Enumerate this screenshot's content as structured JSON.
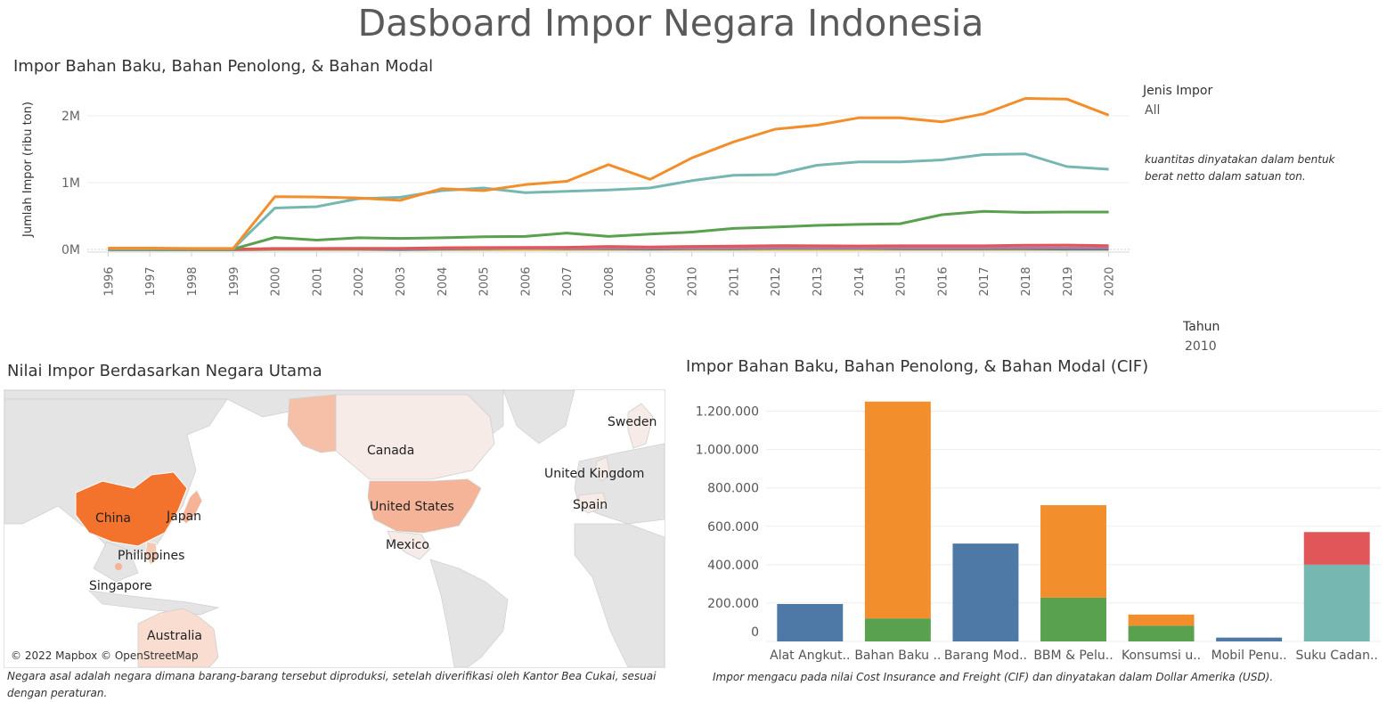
{
  "dashboard_title": "Dasboard Impor Negara Indonesia",
  "line_section": {
    "title": "Impor Bahan Baku, Bahan Penolong, & Bahan Modal",
    "legend_title": "Jenis Impor",
    "legend_value": "All",
    "note": "kuantitas dinyatakan dalam bentuk berat netto dalam satuan ton."
  },
  "year_filter": {
    "title": "Tahun",
    "value": "2010"
  },
  "map_section": {
    "title": "Nilai Impor Berdasarkan Negara Utama",
    "attribution": "© 2022 Mapbox © OpenStreetMap",
    "labels": [
      "China",
      "Japan",
      "Philippines",
      "Singapore",
      "Australia",
      "Canada",
      "United States",
      "Mexico",
      "Sweden",
      "United Kingdom",
      "Spain"
    ],
    "note": "Negara asal adalah negara dimana barang-barang tersebut diproduksi, setelah diverifikasi oleh Kantor Bea Cukai, sesuai dengan peraturan."
  },
  "bar_section": {
    "title": "Impor Bahan Baku, Bahan Penolong, & Bahan Modal (CIF)",
    "note": "Impor mengacu pada nilai Cost Insurance and Freight (CIF) dan dinyatakan dalam Dollar Amerika (USD)."
  },
  "colors": {
    "orange": "#f28e2b",
    "teal": "#76b7b2",
    "green": "#59a14f",
    "red": "#e15759",
    "blue": "#4e79a7",
    "yellow": "#edc948",
    "purple": "#b07aa1"
  },
  "chart_data": [
    {
      "type": "line",
      "ylabel": "Jumlah Impor (ribu ton)",
      "xlabel": "",
      "ylim": [
        0,
        2400000
      ],
      "yticks": [
        0,
        1000000,
        2000000
      ],
      "ytick_labels": [
        "0M",
        "1M",
        "2M"
      ],
      "grid": true,
      "x": [
        "1996",
        "1997",
        "1998",
        "1999",
        "2000",
        "2001",
        "2002",
        "2003",
        "2004",
        "2005",
        "2006",
        "2007",
        "2008",
        "2009",
        "2010",
        "2011",
        "2012",
        "2013",
        "2014",
        "2015",
        "2016",
        "2017",
        "2018",
        "2019",
        "2020"
      ],
      "series": [
        {
          "color": "orange",
          "values": [
            20000,
            20000,
            15000,
            15000,
            790000,
            785000,
            770000,
            735000,
            910000,
            880000,
            970000,
            1020000,
            1270000,
            1050000,
            1370000,
            1610000,
            1800000,
            1860000,
            1970000,
            1970000,
            1910000,
            2030000,
            2260000,
            2250000,
            2010000
          ]
        },
        {
          "color": "teal",
          "values": [
            10000,
            10000,
            10000,
            10000,
            620000,
            640000,
            760000,
            780000,
            880000,
            920000,
            850000,
            870000,
            890000,
            920000,
            1030000,
            1110000,
            1120000,
            1260000,
            1310000,
            1310000,
            1340000,
            1420000,
            1430000,
            1240000,
            1200000
          ]
        },
        {
          "color": "green",
          "values": [
            5000,
            5000,
            5000,
            5000,
            180000,
            140000,
            175000,
            165000,
            175000,
            190000,
            195000,
            245000,
            195000,
            230000,
            260000,
            315000,
            335000,
            360000,
            375000,
            385000,
            520000,
            570000,
            555000,
            560000,
            560000
          ]
        },
        {
          "color": "red",
          "values": [
            3000,
            3000,
            3000,
            3000,
            15000,
            15000,
            18000,
            18000,
            25000,
            28000,
            30000,
            32000,
            45000,
            38000,
            45000,
            50000,
            58000,
            55000,
            52000,
            55000,
            55000,
            55000,
            62000,
            65000,
            58000
          ]
        },
        {
          "color": "purple",
          "values": [
            2000,
            2000,
            2000,
            2000,
            8000,
            8000,
            10000,
            10000,
            12000,
            14000,
            15000,
            15000,
            18000,
            16000,
            18000,
            20000,
            22000,
            22000,
            22000,
            22000,
            22000,
            24000,
            26000,
            25000,
            25000
          ]
        },
        {
          "color": "blue",
          "values": [
            -2000,
            -2000,
            -2000,
            -2000,
            5000,
            5000,
            5000,
            -1000,
            5000,
            10000,
            15000,
            10000,
            10000,
            5000,
            10000,
            10000,
            15000,
            15000,
            15000,
            10000,
            10000,
            10000,
            10000,
            5000,
            5000
          ]
        },
        {
          "color": "yellow",
          "values": [
            -8000,
            -8000,
            -8000,
            -8000,
            -5000,
            -5000,
            -5000,
            -5000,
            -5000,
            -5000,
            -4000,
            -4000,
            -3000,
            -3000,
            -3000,
            -3000,
            -2000,
            -2000,
            -2000,
            -2000,
            -2000,
            -2000,
            -2000,
            -2000,
            -2000
          ]
        }
      ]
    },
    {
      "type": "bar",
      "stacked": true,
      "xlabel": "",
      "ylabel": "",
      "ylim": [
        0,
        1300000
      ],
      "yticks": [
        0,
        200000,
        400000,
        600000,
        800000,
        1000000,
        1200000
      ],
      "ytick_labels": [
        "0",
        "200.000",
        "400.000",
        "600.000",
        "800.000",
        "1.000.000",
        "1.200.000"
      ],
      "grid": true,
      "categories": [
        "Alat Angkut..",
        "Bahan Baku ..",
        "Barang Mod..",
        "BBM & Pelu..",
        "Konsumsi u..",
        "Mobil Penu..",
        "Suku Cadan.."
      ],
      "stacks": [
        [
          {
            "color": "blue",
            "value": 195000
          }
        ],
        [
          {
            "color": "green",
            "value": 120000
          },
          {
            "color": "orange",
            "value": 1130000
          }
        ],
        [
          {
            "color": "blue",
            "value": 510000
          }
        ],
        [
          {
            "color": "green",
            "value": 228000
          },
          {
            "color": "orange",
            "value": 482000
          }
        ],
        [
          {
            "color": "green",
            "value": 82000
          },
          {
            "color": "orange",
            "value": 58000
          }
        ],
        [
          {
            "color": "blue",
            "value": 20000
          }
        ],
        [
          {
            "color": "teal",
            "value": 400000
          },
          {
            "color": "red",
            "value": 170000
          }
        ]
      ]
    }
  ]
}
